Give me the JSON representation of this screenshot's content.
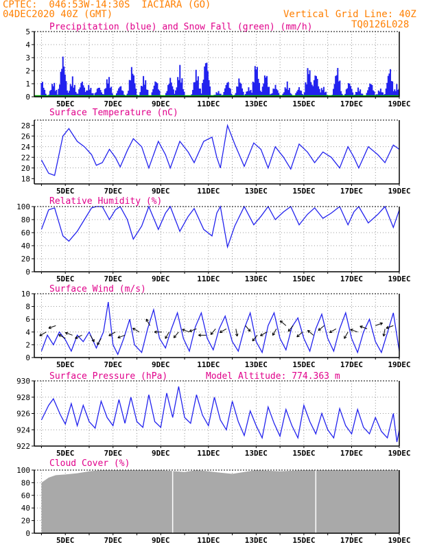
{
  "header": {
    "line1": "CPTEC:  046:53W-14:30S  IACIARA (GO)",
    "line2": "04DEC2020 40Z (GMT)",
    "grid_note": "Vertical Grid Line: 40Z",
    "run_code": "TQ0126L028"
  },
  "colors": {
    "header": "#ff7f00",
    "title": "#e0008a",
    "series": "#2222ee",
    "snow": "#00aa00",
    "cloud": "#a9a9a9"
  },
  "x_ticks": [
    "5DEC",
    "7DEC",
    "9DEC",
    "11DEC",
    "13DEC",
    "15DEC",
    "17DEC",
    "19DEC"
  ],
  "chart_data": [
    {
      "id": "precip",
      "type": "bar",
      "title": "Precipitation (blue) and Snow Fall (green) (mm/h)",
      "ylim": [
        0,
        5
      ],
      "yticks": [
        "0",
        "1",
        "2",
        "3",
        "4",
        "5"
      ],
      "peaks": [
        [
          4.0,
          1.5
        ],
        [
          4.5,
          1.3
        ],
        [
          4.9,
          3.4
        ],
        [
          5.3,
          1.6
        ],
        [
          5.7,
          1.4
        ],
        [
          6.0,
          1.0
        ],
        [
          6.4,
          0.9
        ],
        [
          6.8,
          1.8
        ],
        [
          7.3,
          1.0
        ],
        [
          7.8,
          2.6
        ],
        [
          8.3,
          1.8
        ],
        [
          8.8,
          1.5
        ],
        [
          9.4,
          1.6
        ],
        [
          9.8,
          2.5
        ],
        [
          10.5,
          2.3
        ],
        [
          10.9,
          3.4
        ],
        [
          11.4,
          0.5
        ],
        [
          11.8,
          1.4
        ],
        [
          12.3,
          1.6
        ],
        [
          12.7,
          0.8
        ],
        [
          13.0,
          3.0
        ],
        [
          13.4,
          2.1
        ],
        [
          13.8,
          1.0
        ],
        [
          14.3,
          1.2
        ],
        [
          14.8,
          0.8
        ],
        [
          15.2,
          2.7
        ],
        [
          15.5,
          2.1
        ],
        [
          15.8,
          0.9
        ],
        [
          16.4,
          2.5
        ],
        [
          16.9,
          1.3
        ],
        [
          17.3,
          0.8
        ],
        [
          17.8,
          1.3
        ],
        [
          18.2,
          0.7
        ],
        [
          18.6,
          2.5
        ],
        [
          18.9,
          1.0
        ]
      ],
      "snow": 0
    },
    {
      "id": "temp",
      "type": "line",
      "title": "Surface Temperature (nC)",
      "ylim": [
        17,
        29
      ],
      "yticks": [
        "18",
        "20",
        "22",
        "24",
        "26",
        "28"
      ],
      "values": [
        [
          4.0,
          21.5
        ],
        [
          4.3,
          19.0
        ],
        [
          4.55,
          18.6
        ],
        [
          4.9,
          26.0
        ],
        [
          5.15,
          27.4
        ],
        [
          5.5,
          25.0
        ],
        [
          5.8,
          24.0
        ],
        [
          6.1,
          22.5
        ],
        [
          6.3,
          20.5
        ],
        [
          6.55,
          21.0
        ],
        [
          6.85,
          23.5
        ],
        [
          7.1,
          22.0
        ],
        [
          7.3,
          20.2
        ],
        [
          7.6,
          23.3
        ],
        [
          7.85,
          25.5
        ],
        [
          8.2,
          24.0
        ],
        [
          8.5,
          20.0
        ],
        [
          8.9,
          25.0
        ],
        [
          9.2,
          22.5
        ],
        [
          9.4,
          20.0
        ],
        [
          9.8,
          25.0
        ],
        [
          10.15,
          23.0
        ],
        [
          10.4,
          21.0
        ],
        [
          10.8,
          25.0
        ],
        [
          11.15,
          25.8
        ],
        [
          11.35,
          22.0
        ],
        [
          11.5,
          20.0
        ],
        [
          11.8,
          28.0
        ],
        [
          12.1,
          24.5
        ],
        [
          12.5,
          20.3
        ],
        [
          12.9,
          24.7
        ],
        [
          13.2,
          23.5
        ],
        [
          13.5,
          20.0
        ],
        [
          13.8,
          24.0
        ],
        [
          14.15,
          22.0
        ],
        [
          14.45,
          19.8
        ],
        [
          14.8,
          24.5
        ],
        [
          15.15,
          23.0
        ],
        [
          15.45,
          21.0
        ],
        [
          15.8,
          23.0
        ],
        [
          16.15,
          22.0
        ],
        [
          16.5,
          20.0
        ],
        [
          16.85,
          24.0
        ],
        [
          17.1,
          22.0
        ],
        [
          17.3,
          20.0
        ],
        [
          17.7,
          24.0
        ],
        [
          18.1,
          22.5
        ],
        [
          18.4,
          21.0
        ],
        [
          18.75,
          24.3
        ],
        [
          19.0,
          23.5
        ]
      ]
    },
    {
      "id": "rh",
      "type": "line",
      "title": "Relative Humidity (%)",
      "ylim": [
        0,
        100
      ],
      "yticks": [
        "0",
        "20",
        "40",
        "60",
        "80",
        "100"
      ],
      "values": [
        [
          4.0,
          65
        ],
        [
          4.3,
          95
        ],
        [
          4.55,
          98
        ],
        [
          4.9,
          55
        ],
        [
          5.15,
          47
        ],
        [
          5.5,
          62
        ],
        [
          5.8,
          80
        ],
        [
          6.1,
          98
        ],
        [
          6.3,
          100
        ],
        [
          6.55,
          100
        ],
        [
          6.85,
          80
        ],
        [
          7.1,
          95
        ],
        [
          7.3,
          100
        ],
        [
          7.6,
          80
        ],
        [
          7.85,
          50
        ],
        [
          8.2,
          70
        ],
        [
          8.5,
          100
        ],
        [
          8.9,
          65
        ],
        [
          9.2,
          90
        ],
        [
          9.4,
          100
        ],
        [
          9.8,
          62
        ],
        [
          10.15,
          85
        ],
        [
          10.4,
          97
        ],
        [
          10.8,
          65
        ],
        [
          11.15,
          55
        ],
        [
          11.35,
          90
        ],
        [
          11.5,
          100
        ],
        [
          11.8,
          38
        ],
        [
          12.1,
          70
        ],
        [
          12.5,
          100
        ],
        [
          12.9,
          72
        ],
        [
          13.2,
          85
        ],
        [
          13.5,
          100
        ],
        [
          13.8,
          80
        ],
        [
          14.15,
          92
        ],
        [
          14.45,
          100
        ],
        [
          14.8,
          72
        ],
        [
          15.15,
          88
        ],
        [
          15.45,
          98
        ],
        [
          15.8,
          82
        ],
        [
          16.15,
          90
        ],
        [
          16.5,
          100
        ],
        [
          16.85,
          72
        ],
        [
          17.1,
          92
        ],
        [
          17.3,
          100
        ],
        [
          17.7,
          75
        ],
        [
          18.1,
          88
        ],
        [
          18.4,
          100
        ],
        [
          18.75,
          68
        ],
        [
          19.0,
          95
        ]
      ]
    },
    {
      "id": "wind",
      "type": "line",
      "title": "Surface Wind (m/s)",
      "ylim": [
        0,
        10
      ],
      "yticks": [
        "0",
        "2",
        "4",
        "6",
        "8",
        "10"
      ],
      "values": [
        [
          4.0,
          1.0
        ],
        [
          4.25,
          3.5
        ],
        [
          4.5,
          2.0
        ],
        [
          4.75,
          4.0
        ],
        [
          5.0,
          2.8
        ],
        [
          5.25,
          1.0
        ],
        [
          5.5,
          3.5
        ],
        [
          5.75,
          2.5
        ],
        [
          6.0,
          4.0
        ],
        [
          6.3,
          1.5
        ],
        [
          6.6,
          4.0
        ],
        [
          6.8,
          8.7
        ],
        [
          7.0,
          2.0
        ],
        [
          7.2,
          0.5
        ],
        [
          7.45,
          3.0
        ],
        [
          7.7,
          6.0
        ],
        [
          7.9,
          2.0
        ],
        [
          8.2,
          0.8
        ],
        [
          8.45,
          4.5
        ],
        [
          8.7,
          7.5
        ],
        [
          8.95,
          3.0
        ],
        [
          9.2,
          1.5
        ],
        [
          9.45,
          4.5
        ],
        [
          9.7,
          7.0
        ],
        [
          9.95,
          3.0
        ],
        [
          10.2,
          1.0
        ],
        [
          10.45,
          4.8
        ],
        [
          10.7,
          7.0
        ],
        [
          10.95,
          3.0
        ],
        [
          11.2,
          1.2
        ],
        [
          11.45,
          4.5
        ],
        [
          11.7,
          6.5
        ],
        [
          12.0,
          2.5
        ],
        [
          12.25,
          1.0
        ],
        [
          12.5,
          4.5
        ],
        [
          12.75,
          7.0
        ],
        [
          13.0,
          2.5
        ],
        [
          13.25,
          0.8
        ],
        [
          13.5,
          5.0
        ],
        [
          13.75,
          7.0
        ],
        [
          14.0,
          3.0
        ],
        [
          14.25,
          1.2
        ],
        [
          14.5,
          4.8
        ],
        [
          14.75,
          6.2
        ],
        [
          15.0,
          3.0
        ],
        [
          15.25,
          1.0
        ],
        [
          15.5,
          4.5
        ],
        [
          15.75,
          6.8
        ],
        [
          16.0,
          3.0
        ],
        [
          16.25,
          1.0
        ],
        [
          16.5,
          4.5
        ],
        [
          16.75,
          7.0
        ],
        [
          17.0,
          3.0
        ],
        [
          17.25,
          0.8
        ],
        [
          17.5,
          4.0
        ],
        [
          17.75,
          6.0
        ],
        [
          18.0,
          2.5
        ],
        [
          18.25,
          0.8
        ],
        [
          18.55,
          4.5
        ],
        [
          18.75,
          7.0
        ],
        [
          19.0,
          1.0
        ]
      ],
      "barbs": [
        [
          4.2,
          4,
          210
        ],
        [
          4.6,
          5,
          200
        ],
        [
          5.0,
          3,
          150
        ],
        [
          5.3,
          3.5,
          160
        ],
        [
          5.7,
          3.5,
          205
        ],
        [
          6.05,
          3.5,
          300
        ],
        [
          6.5,
          3,
          240
        ],
        [
          7.1,
          4,
          210
        ],
        [
          7.5,
          3.5,
          200
        ],
        [
          8.1,
          4,
          150
        ],
        [
          8.55,
          5,
          120
        ],
        [
          9.05,
          4,
          180
        ],
        [
          9.35,
          4,
          240
        ],
        [
          9.75,
          4,
          230
        ],
        [
          10.2,
          4,
          160
        ],
        [
          10.5,
          4.5,
          200
        ],
        [
          10.9,
          3.5,
          180
        ],
        [
          11.3,
          4.5,
          230
        ],
        [
          11.75,
          4.5,
          210
        ],
        [
          12.15,
          4.5,
          280
        ],
        [
          12.55,
          5,
          310
        ],
        [
          13.05,
          3.5,
          230
        ],
        [
          13.45,
          4,
          210
        ],
        [
          13.85,
          4.5,
          240
        ],
        [
          14.25,
          5,
          140
        ],
        [
          14.55,
          5,
          230
        ],
        [
          14.95,
          4,
          220
        ],
        [
          15.4,
          3.5,
          140
        ],
        [
          15.85,
          5,
          220
        ],
        [
          16.35,
          4.5,
          210
        ],
        [
          16.85,
          4,
          240
        ],
        [
          17.25,
          4,
          160
        ],
        [
          17.65,
          4.5,
          160
        ],
        [
          18.0,
          5,
          20
        ],
        [
          18.4,
          4.5,
          260
        ],
        [
          18.75,
          5,
          200
        ]
      ]
    },
    {
      "id": "pres",
      "type": "line",
      "title": "Surface Pressure (hPa)",
      "subtitle": "Model Altitude: 774.363 m",
      "ylim": [
        922,
        930
      ],
      "yticks": [
        "922",
        "924",
        "926",
        "928",
        "930"
      ],
      "values": [
        [
          4.0,
          925.2
        ],
        [
          4.3,
          927.0
        ],
        [
          4.5,
          927.8
        ],
        [
          4.8,
          925.8
        ],
        [
          5.0,
          924.7
        ],
        [
          5.25,
          927.2
        ],
        [
          5.5,
          924.5
        ],
        [
          5.75,
          927.0
        ],
        [
          6.0,
          925.0
        ],
        [
          6.25,
          924.2
        ],
        [
          6.5,
          927.5
        ],
        [
          6.75,
          925.5
        ],
        [
          7.0,
          924.5
        ],
        [
          7.25,
          927.7
        ],
        [
          7.5,
          924.8
        ],
        [
          7.75,
          928.0
        ],
        [
          8.0,
          925.0
        ],
        [
          8.25,
          924.3
        ],
        [
          8.5,
          928.3
        ],
        [
          8.75,
          925.0
        ],
        [
          9.0,
          924.3
        ],
        [
          9.25,
          928.5
        ],
        [
          9.5,
          925.5
        ],
        [
          9.75,
          929.3
        ],
        [
          10.0,
          925.5
        ],
        [
          10.25,
          924.8
        ],
        [
          10.5,
          928.3
        ],
        [
          10.75,
          925.8
        ],
        [
          11.0,
          924.5
        ],
        [
          11.25,
          928.0
        ],
        [
          11.5,
          925.2
        ],
        [
          11.75,
          924.0
        ],
        [
          12.0,
          927.5
        ],
        [
          12.25,
          925.0
        ],
        [
          12.5,
          923.3
        ],
        [
          12.75,
          926.3
        ],
        [
          13.0,
          924.5
        ],
        [
          13.25,
          923.0
        ],
        [
          13.5,
          926.8
        ],
        [
          13.75,
          924.8
        ],
        [
          14.0,
          923.2
        ],
        [
          14.25,
          926.5
        ],
        [
          14.5,
          924.5
        ],
        [
          14.75,
          923.0
        ],
        [
          15.0,
          927.0
        ],
        [
          15.25,
          925.0
        ],
        [
          15.5,
          923.5
        ],
        [
          15.75,
          926.0
        ],
        [
          16.0,
          924.0
        ],
        [
          16.25,
          923.0
        ],
        [
          16.5,
          926.6
        ],
        [
          16.75,
          924.5
        ],
        [
          17.0,
          923.5
        ],
        [
          17.25,
          926.5
        ],
        [
          17.5,
          924.3
        ],
        [
          17.75,
          923.5
        ],
        [
          18.0,
          925.5
        ],
        [
          18.25,
          923.8
        ],
        [
          18.5,
          923.0
        ],
        [
          18.75,
          926.0
        ],
        [
          18.9,
          922.5
        ],
        [
          19.0,
          924.0
        ]
      ]
    },
    {
      "id": "cloud",
      "type": "area",
      "title": "Cloud Cover (%)",
      "ylim": [
        0,
        100
      ],
      "yticks": [
        "0",
        "20",
        "40",
        "60",
        "80",
        "100"
      ],
      "values": [
        [
          4.0,
          80
        ],
        [
          4.3,
          88
        ],
        [
          4.6,
          92
        ],
        [
          5.0,
          93
        ],
        [
          5.5,
          95
        ],
        [
          6.0,
          98
        ],
        [
          6.5,
          100
        ],
        [
          7.0,
          100
        ],
        [
          8.0,
          100
        ],
        [
          9.0,
          100
        ],
        [
          10.0,
          97
        ],
        [
          10.5,
          100
        ],
        [
          11.0,
          98
        ],
        [
          11.5,
          96
        ],
        [
          12.0,
          94
        ],
        [
          12.5,
          97
        ],
        [
          13.0,
          100
        ],
        [
          14.0,
          98
        ],
        [
          15.0,
          100
        ],
        [
          16.0,
          100
        ],
        [
          17.0,
          100
        ],
        [
          18.0,
          100
        ],
        [
          19.0,
          100
        ]
      ],
      "gaps": [
        9.5,
        15.5
      ]
    }
  ]
}
